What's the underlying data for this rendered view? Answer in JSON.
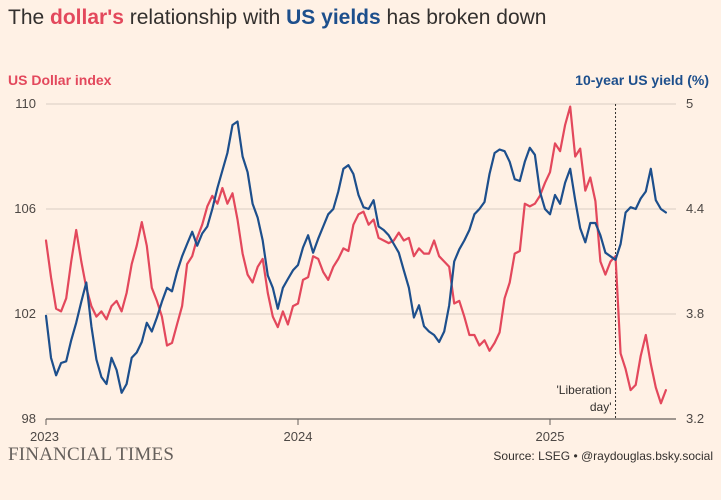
{
  "header": {
    "title_pre": "The ",
    "title_dollar": "dollar's",
    "title_mid": " relationship with ",
    "title_yields": "US yields",
    "title_post": " has broken down"
  },
  "footer": {
    "brand": "FINANCIAL TIMES",
    "source": "Source: LSEG • @raydouglas.bsky.social"
  },
  "colors": {
    "background": "#fff1e5",
    "dollar": "#e3485c",
    "yield": "#1d4f8c",
    "grid": "#d9cdc3",
    "annotation_line": "#33302e"
  },
  "chart_data": {
    "type": "line",
    "left_axis_label": "US Dollar index",
    "right_axis_label": "10-year US yield (%)",
    "ylim_left": [
      98,
      110
    ],
    "ylim_right": [
      3.2,
      5
    ],
    "yticks_left": [
      98,
      102,
      106,
      110
    ],
    "yticks_right": [
      3.2,
      3.8,
      4.4,
      5
    ],
    "ytick_labels_right": [
      "3.2",
      "3.8",
      "4.4",
      "5"
    ],
    "x_range": [
      2023.0,
      2025.5
    ],
    "xticks": [
      2023,
      2024,
      2025
    ],
    "xtick_labels": [
      "2023",
      "2024",
      "2025"
    ],
    "grid": "horizontal",
    "annotation": {
      "x": 2025.26,
      "lines": [
        "'Liberation",
        "day'"
      ]
    },
    "series": [
      {
        "name": "US Dollar index",
        "axis": "left",
        "x": [
          2023.0,
          2023.02,
          2023.04,
          2023.06,
          2023.08,
          2023.1,
          2023.12,
          2023.14,
          2023.16,
          2023.18,
          2023.2,
          2023.22,
          2023.24,
          2023.26,
          2023.28,
          2023.3,
          2023.32,
          2023.34,
          2023.36,
          2023.38,
          2023.4,
          2023.42,
          2023.44,
          2023.46,
          2023.48,
          2023.5,
          2023.52,
          2023.54,
          2023.56,
          2023.58,
          2023.6,
          2023.62,
          2023.64,
          2023.66,
          2023.68,
          2023.7,
          2023.72,
          2023.74,
          2023.76,
          2023.78,
          2023.8,
          2023.82,
          2023.84,
          2023.86,
          2023.88,
          2023.9,
          2023.92,
          2023.94,
          2023.96,
          2023.98,
          2024.0,
          2024.02,
          2024.04,
          2024.06,
          2024.08,
          2024.1,
          2024.12,
          2024.14,
          2024.16,
          2024.18,
          2024.2,
          2024.22,
          2024.24,
          2024.26,
          2024.28,
          2024.3,
          2024.32,
          2024.34,
          2024.36,
          2024.38,
          2024.4,
          2024.42,
          2024.44,
          2024.46,
          2024.48,
          2024.5,
          2024.52,
          2024.54,
          2024.56,
          2024.58,
          2024.6,
          2024.62,
          2024.64,
          2024.66,
          2024.68,
          2024.7,
          2024.72,
          2024.74,
          2024.76,
          2024.78,
          2024.8,
          2024.82,
          2024.84,
          2024.86,
          2024.88,
          2024.9,
          2024.92,
          2024.94,
          2024.96,
          2024.98,
          2025.0,
          2025.02,
          2025.04,
          2025.06,
          2025.08,
          2025.1,
          2025.12,
          2025.14,
          2025.16,
          2025.18,
          2025.2,
          2025.22,
          2025.24,
          2025.26,
          2025.28,
          2025.3,
          2025.32,
          2025.34,
          2025.36,
          2025.38,
          2025.4,
          2025.42,
          2025.44,
          2025.46
        ],
        "values": [
          104.8,
          103.4,
          102.2,
          102.1,
          102.6,
          104.0,
          105.2,
          104.0,
          103.0,
          102.3,
          101.9,
          102.1,
          101.8,
          102.3,
          102.5,
          102.1,
          102.8,
          103.9,
          104.6,
          105.5,
          104.6,
          103.0,
          102.5,
          101.9,
          100.8,
          100.9,
          101.6,
          102.3,
          103.9,
          104.2,
          104.9,
          105.4,
          106.1,
          106.5,
          106.2,
          106.8,
          106.2,
          106.6,
          105.6,
          104.3,
          103.5,
          103.2,
          103.8,
          104.1,
          102.8,
          101.9,
          101.5,
          102.1,
          101.6,
          102.3,
          102.4,
          103.3,
          103.4,
          104.2,
          104.1,
          103.6,
          103.3,
          103.8,
          104.1,
          104.5,
          104.4,
          105.4,
          105.8,
          105.9,
          105.4,
          105.6,
          104.9,
          104.8,
          104.7,
          104.8,
          105.1,
          104.8,
          104.9,
          104.2,
          104.5,
          104.3,
          104.3,
          104.8,
          104.2,
          104.0,
          103.8,
          102.4,
          102.5,
          101.9,
          101.2,
          101.2,
          100.8,
          101.0,
          100.6,
          100.9,
          101.3,
          102.6,
          103.2,
          104.3,
          104.4,
          106.2,
          106.1,
          106.2,
          106.5,
          107.0,
          107.4,
          108.5,
          108.2,
          109.2,
          109.9,
          108.0,
          108.3,
          106.7,
          107.2,
          106.3,
          104.0,
          103.5,
          104.0,
          104.2,
          100.5,
          99.9,
          99.1,
          99.3,
          100.4,
          101.2,
          100.1,
          99.2,
          98.6,
          99.1
        ]
      },
      {
        "name": "10-year US yield (%)",
        "axis": "right",
        "x": [
          2023.0,
          2023.02,
          2023.04,
          2023.06,
          2023.08,
          2023.1,
          2023.12,
          2023.14,
          2023.16,
          2023.18,
          2023.2,
          2023.22,
          2023.24,
          2023.26,
          2023.28,
          2023.3,
          2023.32,
          2023.34,
          2023.36,
          2023.38,
          2023.4,
          2023.42,
          2023.44,
          2023.46,
          2023.48,
          2023.5,
          2023.52,
          2023.54,
          2023.56,
          2023.58,
          2023.6,
          2023.62,
          2023.64,
          2023.66,
          2023.68,
          2023.7,
          2023.72,
          2023.74,
          2023.76,
          2023.78,
          2023.8,
          2023.82,
          2023.84,
          2023.86,
          2023.88,
          2023.9,
          2023.92,
          2023.94,
          2023.96,
          2023.98,
          2024.0,
          2024.02,
          2024.04,
          2024.06,
          2024.08,
          2024.1,
          2024.12,
          2024.14,
          2024.16,
          2024.18,
          2024.2,
          2024.22,
          2024.24,
          2024.26,
          2024.28,
          2024.3,
          2024.32,
          2024.34,
          2024.36,
          2024.38,
          2024.4,
          2024.42,
          2024.44,
          2024.46,
          2024.48,
          2024.5,
          2024.52,
          2024.54,
          2024.56,
          2024.58,
          2024.6,
          2024.62,
          2024.64,
          2024.66,
          2024.68,
          2024.7,
          2024.72,
          2024.74,
          2024.76,
          2024.78,
          2024.8,
          2024.82,
          2024.84,
          2024.86,
          2024.88,
          2024.9,
          2024.92,
          2024.94,
          2024.96,
          2024.98,
          2025.0,
          2025.02,
          2025.04,
          2025.06,
          2025.08,
          2025.1,
          2025.12,
          2025.14,
          2025.16,
          2025.18,
          2025.2,
          2025.22,
          2025.24,
          2025.26,
          2025.28,
          2025.3,
          2025.32,
          2025.34,
          2025.36,
          2025.38,
          2025.4,
          2025.42,
          2025.44,
          2025.46
        ],
        "values": [
          3.79,
          3.55,
          3.45,
          3.52,
          3.53,
          3.65,
          3.75,
          3.87,
          3.98,
          3.73,
          3.54,
          3.44,
          3.4,
          3.55,
          3.48,
          3.35,
          3.4,
          3.55,
          3.58,
          3.64,
          3.75,
          3.7,
          3.78,
          3.87,
          3.95,
          3.93,
          4.04,
          4.13,
          4.2,
          4.27,
          4.19,
          4.26,
          4.3,
          4.4,
          4.52,
          4.62,
          4.72,
          4.88,
          4.9,
          4.7,
          4.61,
          4.43,
          4.35,
          4.22,
          4.02,
          3.95,
          3.83,
          3.95,
          4.0,
          4.05,
          4.08,
          4.18,
          4.25,
          4.15,
          4.23,
          4.3,
          4.37,
          4.4,
          4.5,
          4.63,
          4.65,
          4.6,
          4.48,
          4.41,
          4.4,
          4.45,
          4.3,
          4.28,
          4.25,
          4.2,
          4.15,
          4.05,
          3.95,
          3.78,
          3.85,
          3.73,
          3.7,
          3.68,
          3.64,
          3.7,
          3.85,
          4.1,
          4.17,
          4.22,
          4.28,
          4.37,
          4.4,
          4.44,
          4.6,
          4.72,
          4.74,
          4.73,
          4.67,
          4.57,
          4.56,
          4.67,
          4.75,
          4.71,
          4.5,
          4.4,
          4.37,
          4.48,
          4.43,
          4.55,
          4.63,
          4.45,
          4.29,
          4.21,
          4.32,
          4.32,
          4.25,
          4.15,
          4.13,
          4.11,
          4.2,
          4.38,
          4.41,
          4.4,
          4.46,
          4.5,
          4.63,
          4.45,
          4.4,
          4.38
        ]
      }
    ]
  }
}
